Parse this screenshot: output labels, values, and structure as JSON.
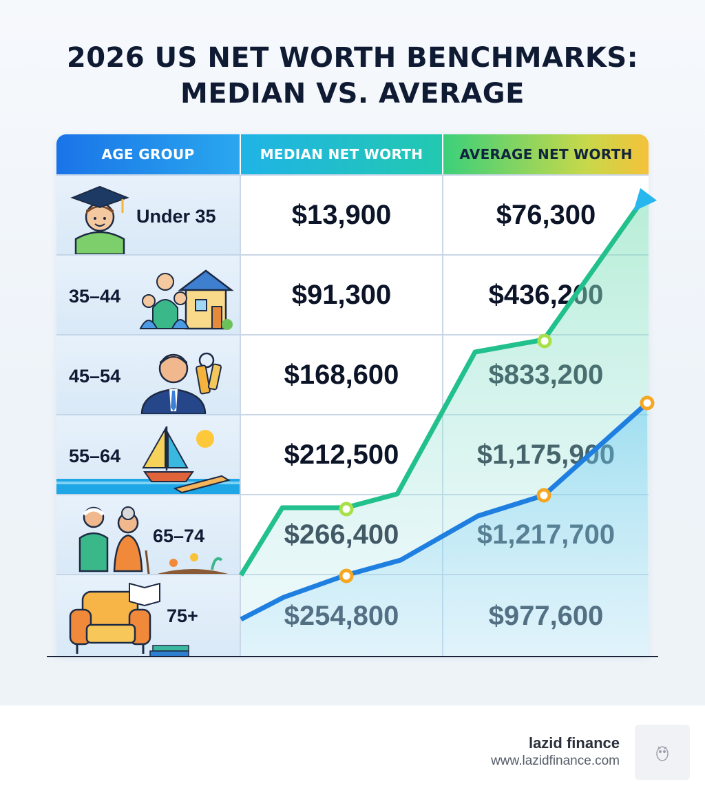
{
  "title": {
    "line1": "2026 US NET WORTH BENCHMARKS:",
    "line2": "MEDIAN VS. AVERAGE"
  },
  "headers": {
    "age": "AGE GROUP",
    "median": "MEDIAN NET WORTH",
    "average": "AVERAGE NET WORTH"
  },
  "rows": [
    {
      "age": "Under 35",
      "median": "$13,900",
      "average": "$76,300",
      "icon": "graduate-icon"
    },
    {
      "age": "35–44",
      "median": "$91,300",
      "average": "$436,200",
      "icon": "family-house-icon"
    },
    {
      "age": "45–54",
      "median": "$168,600",
      "average": "$833,200",
      "icon": "businessman-keys-icon"
    },
    {
      "age": "55–64",
      "median": "$212,500",
      "average": "$1,175,900",
      "icon": "sailboat-sun-icon"
    },
    {
      "age": "65–74",
      "median": "$266,400",
      "average": "$1,217,700",
      "icon": "elderly-couple-garden-icon"
    },
    {
      "age": "75+",
      "median": "$254,800",
      "average": "$977,600",
      "icon": "armchair-books-icon"
    }
  ],
  "chart_data": {
    "type": "table",
    "columns": [
      "AGE GROUP",
      "MEDIAN NET WORTH",
      "AVERAGE NET WORTH"
    ],
    "categories": [
      "Under 35",
      "35–44",
      "45–54",
      "55–64",
      "65–74",
      "75+"
    ],
    "series": [
      {
        "name": "MEDIAN NET WORTH",
        "values": [
          13900,
          91300,
          168600,
          212500,
          266400,
          254800
        ]
      },
      {
        "name": "AVERAGE NET WORTH",
        "values": [
          76300,
          436200,
          833200,
          1175900,
          1217700,
          977600
        ]
      }
    ],
    "colors": {
      "green_line": "#22c08c",
      "blue_line": "#1f7fe0",
      "arrow": "#27b6ee",
      "marker_green": "#a8e04a",
      "marker_orange": "#f5a623"
    }
  },
  "footer": {
    "brand": "lazid finance",
    "url": "www.lazidfinance.com"
  }
}
